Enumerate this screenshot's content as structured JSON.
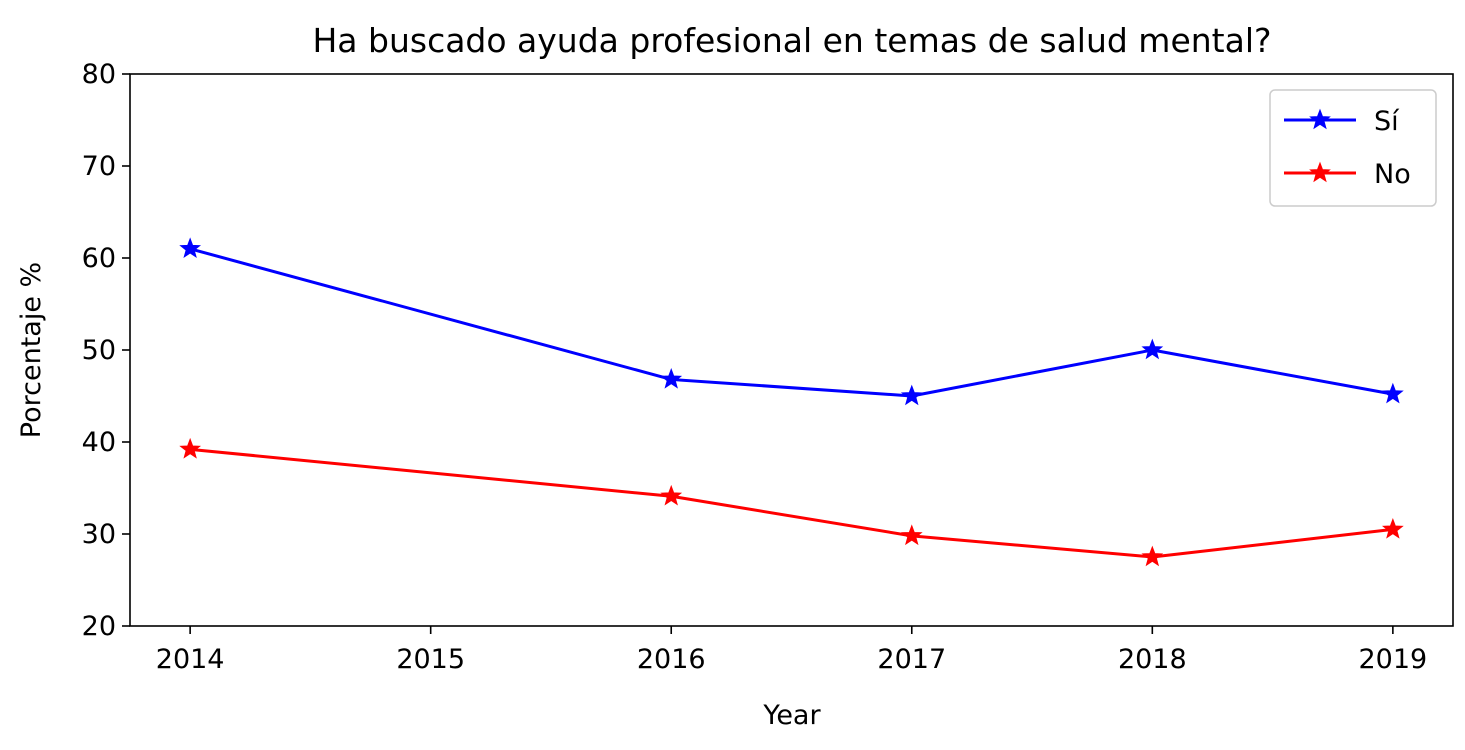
{
  "chart_data": {
    "type": "line",
    "title": "Ha buscado ayuda profesional en temas de salud mental?",
    "xlabel": "Year",
    "ylabel": "Porcentaje %",
    "x": [
      2014,
      2016,
      2017,
      2018,
      2019
    ],
    "xticks": [
      "2014",
      "2015",
      "2016",
      "2017",
      "2018",
      "2019"
    ],
    "xlim": [
      2013.75,
      2019.25
    ],
    "ylim": [
      20,
      80
    ],
    "yticks": [
      "20",
      "30",
      "40",
      "50",
      "60",
      "70",
      "80"
    ],
    "grid": false,
    "legend_position": "top-right",
    "marker": "star",
    "series": [
      {
        "name": "Sí",
        "color": "#0000ff",
        "values": [
          61.0,
          46.8,
          45.0,
          50.0,
          45.2
        ]
      },
      {
        "name": "No",
        "color": "#ff0000",
        "values": [
          39.2,
          34.1,
          29.8,
          27.5,
          30.5
        ]
      }
    ]
  }
}
